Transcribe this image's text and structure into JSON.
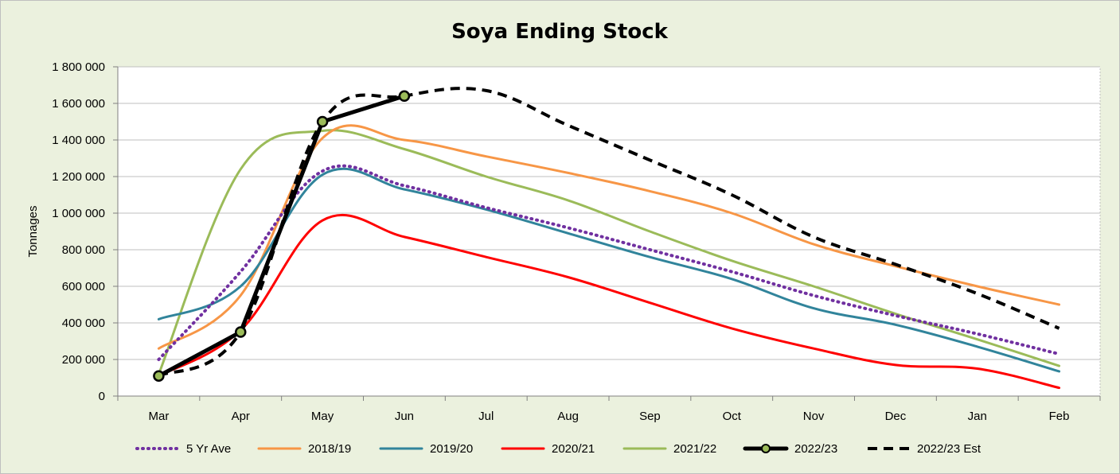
{
  "chart_data": {
    "type": "line",
    "title": "Soya Ending Stock",
    "ylabel": "Tonnages",
    "xlabel": "",
    "ylim": [
      0,
      1800000
    ],
    "yticks": [
      0,
      200000,
      400000,
      600000,
      800000,
      1000000,
      1200000,
      1400000,
      1600000,
      1800000
    ],
    "ytick_labels": [
      "0",
      "200 000",
      "400 000",
      "600 000",
      "800 000",
      "1 000 000",
      "1 200 000",
      "1 400 000",
      "1 600 000",
      "1 800 000"
    ],
    "categories": [
      "Mar",
      "Apr",
      "May",
      "Jun",
      "Jul",
      "Aug",
      "Sep",
      "Oct",
      "Nov",
      "Dec",
      "Jan",
      "Feb"
    ],
    "grid": true,
    "legend": "bottom",
    "series": [
      {
        "name": "5 Yr Ave",
        "color": "#7030a0",
        "style": "dotted",
        "values": [
          200000,
          680000,
          1230000,
          1150000,
          1030000,
          920000,
          800000,
          680000,
          550000,
          440000,
          340000,
          230000
        ]
      },
      {
        "name": "2018/19",
        "color": "#f79646",
        "style": "solid",
        "values": [
          260000,
          550000,
          1410000,
          1400000,
          1310000,
          1220000,
          1120000,
          1000000,
          830000,
          710000,
          600000,
          500000
        ]
      },
      {
        "name": "2019/20",
        "color": "#31849b",
        "style": "solid",
        "values": [
          420000,
          600000,
          1210000,
          1130000,
          1020000,
          890000,
          760000,
          640000,
          480000,
          390000,
          270000,
          135000
        ]
      },
      {
        "name": "2020/21",
        "color": "#ff0000",
        "style": "solid",
        "values": [
          110000,
          360000,
          960000,
          870000,
          760000,
          650000,
          510000,
          370000,
          260000,
          170000,
          150000,
          45000
        ]
      },
      {
        "name": "2021/22",
        "color": "#9bbb59",
        "style": "solid",
        "values": [
          120000,
          1240000,
          1450000,
          1350000,
          1200000,
          1070000,
          900000,
          740000,
          600000,
          450000,
          310000,
          165000
        ]
      },
      {
        "name": "2022/23",
        "color": "#000000",
        "style": "solid-marker",
        "values": [
          110000,
          350000,
          1500000,
          1640000,
          null,
          null,
          null,
          null,
          null,
          null,
          null,
          null
        ]
      },
      {
        "name": "2022/23 Est",
        "color": "#000000",
        "style": "dashed",
        "values": [
          110000,
          350000,
          1500000,
          1640000,
          1670000,
          1480000,
          1290000,
          1100000,
          870000,
          720000,
          560000,
          370000
        ]
      }
    ]
  }
}
